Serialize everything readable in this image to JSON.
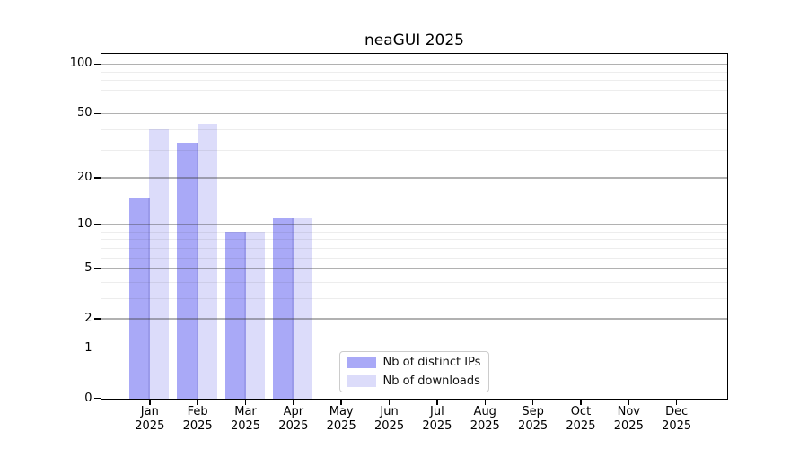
{
  "chart_data": {
    "type": "bar",
    "title": "neaGUI 2025",
    "year_label": "2025",
    "categories": [
      "Jan",
      "Feb",
      "Mar",
      "Apr",
      "May",
      "Jun",
      "Jul",
      "Aug",
      "Sep",
      "Oct",
      "Nov",
      "Dec"
    ],
    "series": [
      {
        "name": "Nb of distinct IPs",
        "color": "#a9a9f7",
        "values": [
          15,
          33,
          9,
          11,
          0,
          0,
          0,
          0,
          0,
          0,
          0,
          0
        ]
      },
      {
        "name": "Nb of downloads",
        "color": "#dcdcfa",
        "values": [
          40,
          43,
          9,
          11,
          0,
          0,
          0,
          0,
          0,
          0,
          0,
          0
        ]
      }
    ],
    "yscale": "log1p",
    "ylim": [
      0,
      116
    ],
    "y_major_ticks": [
      0,
      1,
      2,
      5,
      10,
      20,
      50,
      100
    ],
    "y_minor_ticks": [
      3,
      4,
      6,
      7,
      8,
      9,
      30,
      40,
      60,
      70,
      80,
      90
    ],
    "grid": "on",
    "legend_position": "lower center",
    "colors": {
      "bar_overlap_seam": "#9a9aea",
      "major_grid": "#b1b1b1",
      "minor_grid": "#ececec",
      "axis": "#000000",
      "legend_border": "#cccccc"
    }
  }
}
